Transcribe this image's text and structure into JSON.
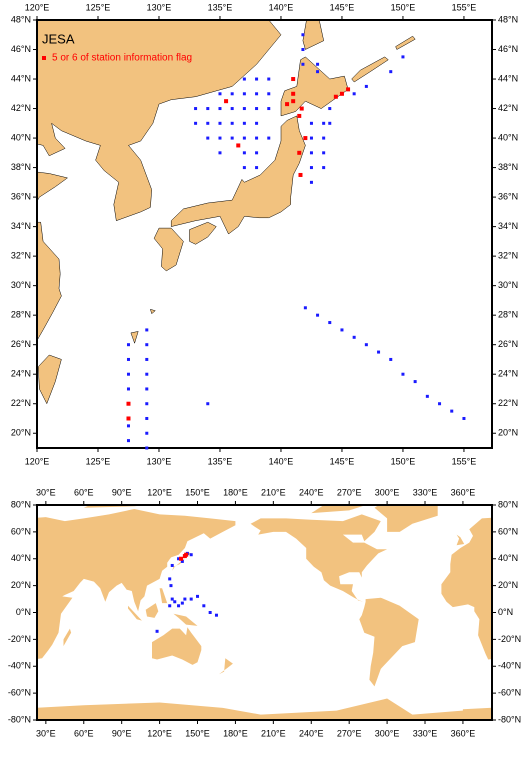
{
  "map1": {
    "title": "JESA",
    "legend": "5 or 6 of station information flag",
    "xlim": [
      120,
      157.3
    ],
    "ylim": [
      19,
      48
    ],
    "xticks": [
      {
        "value": 120,
        "label": "120°E"
      },
      {
        "value": 125,
        "label": "125°E"
      },
      {
        "value": 130,
        "label": "130°E"
      },
      {
        "value": 135,
        "label": "135°E"
      },
      {
        "value": 140,
        "label": "140°E"
      },
      {
        "value": 145,
        "label": "145°E"
      },
      {
        "value": 150,
        "label": "150°E"
      },
      {
        "value": 155,
        "label": "155°E"
      }
    ],
    "yticks": [
      {
        "value": 20,
        "label": "20°N"
      },
      {
        "value": 22,
        "label": "22°N"
      },
      {
        "value": 24,
        "label": "24°N"
      },
      {
        "value": 26,
        "label": "26°N"
      },
      {
        "value": 28,
        "label": "28°N"
      },
      {
        "value": 30,
        "label": "30°N"
      },
      {
        "value": 32,
        "label": "32°N"
      },
      {
        "value": 34,
        "label": "34°N"
      },
      {
        "value": 36,
        "label": "36°N"
      },
      {
        "value": 38,
        "label": "38°N"
      },
      {
        "value": 40,
        "label": "40°N"
      },
      {
        "value": 42,
        "label": "42°N"
      },
      {
        "value": 44,
        "label": "44°N"
      },
      {
        "value": 46,
        "label": "46°N"
      },
      {
        "value": 48,
        "label": "48°N"
      }
    ],
    "stations": {
      "color": "#1a1aff",
      "lon": [
        137,
        138,
        139,
        135,
        136,
        137,
        138,
        139,
        133,
        134,
        135,
        136,
        137,
        138,
        139,
        133,
        134,
        135,
        136,
        137,
        138,
        134,
        135,
        136,
        137,
        138,
        139,
        135,
        137,
        138,
        137,
        138,
        142.5,
        142.5,
        142.5,
        142.5,
        142.5,
        143.5,
        143.5,
        143.5,
        143.5,
        144,
        144,
        146,
        147,
        149,
        150,
        141.8,
        141.8,
        141.8,
        143,
        143,
        142,
        143,
        144,
        145,
        146,
        147,
        148,
        149,
        150,
        151,
        152,
        153,
        154,
        155,
        127.5,
        127.5,
        127.5,
        127.5,
        127.5,
        127.5,
        129,
        129,
        129,
        129,
        129,
        129,
        129,
        129,
        129,
        134
      ],
      "lat": [
        44,
        44,
        44,
        43,
        43,
        43,
        43,
        43,
        42,
        42,
        42,
        42,
        42,
        42,
        42,
        41,
        41,
        41,
        41,
        41,
        41,
        40,
        40,
        40,
        40,
        40,
        40,
        39,
        39,
        39,
        38,
        38,
        37,
        38,
        39,
        40,
        41,
        38,
        39,
        40,
        41,
        41,
        42,
        43,
        43.5,
        44.5,
        45.5,
        45,
        46,
        47,
        44.5,
        45,
        28.5,
        28,
        27.5,
        27,
        26.5,
        26,
        25.5,
        25,
        24,
        23.5,
        22.5,
        22,
        21.5,
        21,
        19.5,
        20.5,
        23,
        24,
        25,
        26,
        19,
        20,
        21,
        22,
        23,
        24,
        25,
        26,
        27,
        22
      ]
    },
    "flagged": {
      "color": "#ff0000",
      "lon": [
        127.5,
        127.5,
        140.5,
        141,
        141.7,
        145,
        145.5,
        144.5,
        141,
        141.5,
        142,
        141.5,
        141,
        135.5,
        136.5,
        141.6
      ],
      "lat": [
        22,
        21,
        42.3,
        42.5,
        42,
        43,
        43.3,
        42.8,
        44,
        41.5,
        40,
        39,
        43,
        42.5,
        39.5,
        37.5
      ]
    }
  },
  "map2": {
    "xlim": [
      23,
      383
    ],
    "ylim": [
      -80,
      80
    ],
    "xticks": [
      {
        "value": 30,
        "label": "30°E"
      },
      {
        "value": 60,
        "label": "60°E"
      },
      {
        "value": 90,
        "label": "90°E"
      },
      {
        "value": 120,
        "label": "120°E"
      },
      {
        "value": 150,
        "label": "150°E"
      },
      {
        "value": 180,
        "label": "180°E"
      },
      {
        "value": 210,
        "label": "210°E"
      },
      {
        "value": 240,
        "label": "240°E"
      },
      {
        "value": 270,
        "label": "270°E"
      },
      {
        "value": 300,
        "label": "300°E"
      },
      {
        "value": 330,
        "label": "330°E"
      },
      {
        "value": 360,
        "label": "360°E"
      }
    ],
    "yticks": [
      {
        "value": -80,
        "label": "-80°N"
      },
      {
        "value": -60,
        "label": "-60°N"
      },
      {
        "value": -40,
        "label": "-40°N"
      },
      {
        "value": -20,
        "label": "-20°N"
      },
      {
        "value": 0,
        "label": "0°N"
      },
      {
        "value": 20,
        "label": "20°N"
      },
      {
        "value": 40,
        "label": "40°N"
      },
      {
        "value": 60,
        "label": "60°N"
      },
      {
        "value": 80,
        "label": "80°N"
      }
    ],
    "stations": {
      "color": "#1a1aff",
      "lon": [
        135,
        140,
        142,
        138,
        130,
        145,
        128,
        129,
        130,
        128,
        132,
        135,
        138,
        140,
        145,
        150,
        155,
        160,
        165,
        118
      ],
      "lat": [
        40,
        42,
        44,
        38,
        35,
        43,
        25,
        20,
        10,
        5,
        8,
        5,
        7,
        10,
        10,
        12,
        5,
        0,
        -2,
        -14
      ]
    },
    "flagged": {
      "color": "#ff0000",
      "lon": [
        140,
        137,
        141
      ],
      "lat": [
        42,
        40,
        43
      ]
    }
  }
}
